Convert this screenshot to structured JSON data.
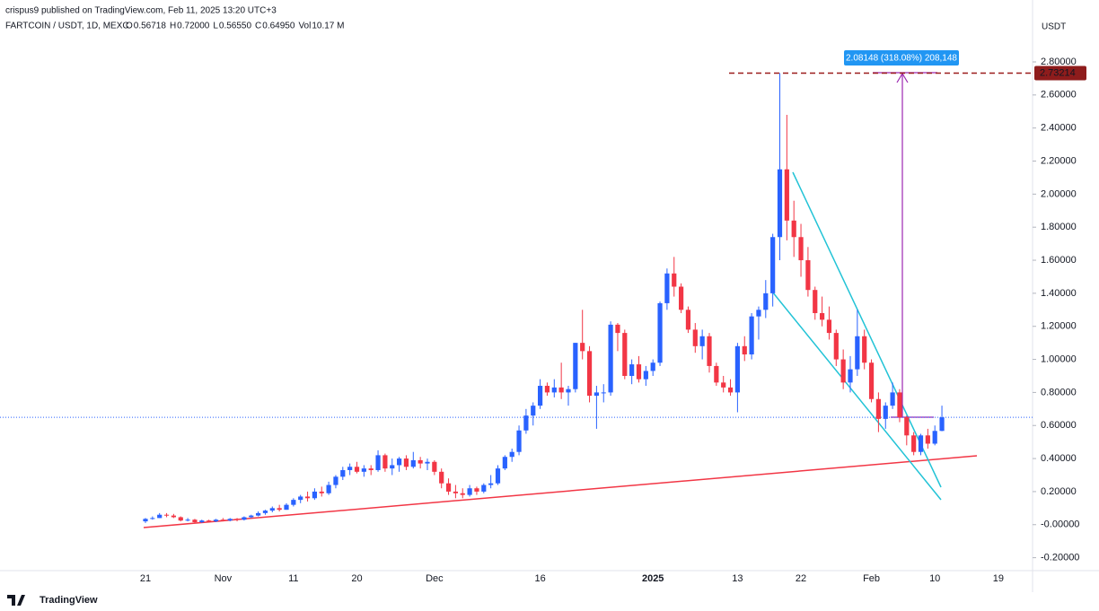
{
  "chart_data": {
    "type": "candlestick",
    "published": "crispus9 published on TradingView.com, Feb 11, 2025 13:20 UTC+3",
    "symbol": "FARTCOIN / USDT, 1D, MEXC",
    "legend": [
      {
        "key": "O",
        "value": "0.56718"
      },
      {
        "key": "H",
        "value": "0.72000"
      },
      {
        "key": "L",
        "value": "0.56550"
      },
      {
        "key": "C",
        "value": "0.64950"
      },
      {
        "key": "Vol",
        "value": "10.17 M"
      }
    ],
    "unit": "USDT",
    "brand": "TradingView",
    "measure_label": "2.08148 (318.08%) 208,148",
    "target_price": 2.73214,
    "last_price": 0.6495,
    "up_color": "#2962ff",
    "down_color": "#f23645",
    "categories": [
      "21",
      null,
      null,
      null,
      null,
      null,
      null,
      null,
      null,
      null,
      null,
      "Nov",
      null,
      null,
      null,
      null,
      null,
      null,
      null,
      null,
      null,
      "11",
      null,
      null,
      null,
      null,
      null,
      null,
      null,
      null,
      "20",
      null,
      null,
      null,
      null,
      null,
      null,
      null,
      null,
      null,
      null,
      "Dec",
      null,
      null,
      null,
      null,
      null,
      null,
      null,
      null,
      null,
      null,
      null,
      null,
      null,
      null,
      "16",
      null,
      null,
      null,
      null,
      null,
      null,
      null,
      null,
      null,
      null,
      null,
      null,
      null,
      null,
      null,
      "2025",
      null,
      null,
      null,
      null,
      null,
      null,
      null,
      null,
      null,
      null,
      null,
      "13",
      null,
      null,
      null,
      null,
      null,
      null,
      null,
      null,
      "22",
      null,
      null,
      null,
      null,
      null,
      null,
      null,
      null,
      null,
      "Feb",
      null,
      null,
      null,
      null,
      null,
      null,
      null,
      null,
      "10",
      null,
      null,
      null,
      null,
      null,
      null,
      null,
      null,
      "19"
    ],
    "ohlc": [
      [
        0.02,
        0.04,
        0.01,
        0.035
      ],
      [
        0.035,
        0.05,
        0.03,
        0.04
      ],
      [
        0.04,
        0.07,
        0.04,
        0.06
      ],
      [
        0.06,
        0.07,
        0.045,
        0.055
      ],
      [
        0.055,
        0.065,
        0.04,
        0.045
      ],
      [
        0.045,
        0.05,
        0.02,
        0.025
      ],
      [
        0.025,
        0.04,
        0.02,
        0.03
      ],
      [
        0.03,
        0.035,
        0.01,
        0.015
      ],
      [
        0.015,
        0.03,
        0.01,
        0.025
      ],
      [
        0.025,
        0.03,
        0.015,
        0.02
      ],
      [
        0.02,
        0.035,
        0.015,
        0.03
      ],
      [
        0.03,
        0.04,
        0.02,
        0.025
      ],
      [
        0.025,
        0.04,
        0.02,
        0.035
      ],
      [
        0.035,
        0.04,
        0.02,
        0.03
      ],
      [
        0.03,
        0.05,
        0.025,
        0.045
      ],
      [
        0.045,
        0.06,
        0.04,
        0.055
      ],
      [
        0.055,
        0.08,
        0.05,
        0.07
      ],
      [
        0.07,
        0.09,
        0.06,
        0.085
      ],
      [
        0.085,
        0.11,
        0.075,
        0.1
      ],
      [
        0.1,
        0.12,
        0.08,
        0.09
      ],
      [
        0.09,
        0.13,
        0.09,
        0.12
      ],
      [
        0.12,
        0.16,
        0.11,
        0.15
      ],
      [
        0.15,
        0.18,
        0.13,
        0.17
      ],
      [
        0.17,
        0.2,
        0.14,
        0.16
      ],
      [
        0.16,
        0.22,
        0.15,
        0.2
      ],
      [
        0.2,
        0.23,
        0.17,
        0.19
      ],
      [
        0.19,
        0.26,
        0.18,
        0.24
      ],
      [
        0.24,
        0.3,
        0.22,
        0.29
      ],
      [
        0.29,
        0.35,
        0.27,
        0.33
      ],
      [
        0.33,
        0.37,
        0.3,
        0.35
      ],
      [
        0.35,
        0.38,
        0.31,
        0.32
      ],
      [
        0.32,
        0.36,
        0.29,
        0.34
      ],
      [
        0.34,
        0.36,
        0.3,
        0.33
      ],
      [
        0.33,
        0.45,
        0.32,
        0.42
      ],
      [
        0.42,
        0.43,
        0.32,
        0.34
      ],
      [
        0.34,
        0.4,
        0.3,
        0.36
      ],
      [
        0.36,
        0.41,
        0.32,
        0.4
      ],
      [
        0.4,
        0.42,
        0.33,
        0.35
      ],
      [
        0.35,
        0.44,
        0.34,
        0.39
      ],
      [
        0.39,
        0.41,
        0.34,
        0.37
      ],
      [
        0.37,
        0.4,
        0.33,
        0.38
      ],
      [
        0.38,
        0.39,
        0.3,
        0.32
      ],
      [
        0.32,
        0.34,
        0.22,
        0.25
      ],
      [
        0.25,
        0.28,
        0.18,
        0.2
      ],
      [
        0.2,
        0.24,
        0.16,
        0.19
      ],
      [
        0.19,
        0.22,
        0.16,
        0.18
      ],
      [
        0.18,
        0.24,
        0.17,
        0.22
      ],
      [
        0.22,
        0.23,
        0.18,
        0.2
      ],
      [
        0.2,
        0.25,
        0.19,
        0.24
      ],
      [
        0.24,
        0.3,
        0.22,
        0.25
      ],
      [
        0.25,
        0.36,
        0.24,
        0.34
      ],
      [
        0.34,
        0.42,
        0.33,
        0.41
      ],
      [
        0.41,
        0.46,
        0.38,
        0.44
      ],
      [
        0.44,
        0.6,
        0.42,
        0.57
      ],
      [
        0.57,
        0.7,
        0.55,
        0.66
      ],
      [
        0.66,
        0.74,
        0.6,
        0.72
      ],
      [
        0.72,
        0.88,
        0.7,
        0.84
      ],
      [
        0.84,
        0.86,
        0.78,
        0.8
      ],
      [
        0.8,
        0.88,
        0.77,
        0.83
      ],
      [
        0.83,
        0.98,
        0.76,
        0.8
      ],
      [
        0.8,
        0.84,
        0.72,
        0.82
      ],
      [
        0.82,
        1.1,
        0.8,
        1.1
      ],
      [
        1.1,
        1.3,
        1.0,
        1.05
      ],
      [
        1.05,
        1.08,
        0.74,
        0.78
      ],
      [
        0.78,
        0.84,
        0.58,
        0.8
      ],
      [
        0.8,
        0.85,
        0.74,
        0.8
      ],
      [
        0.8,
        1.23,
        0.78,
        1.21
      ],
      [
        1.21,
        1.22,
        1.05,
        1.16
      ],
      [
        1.16,
        1.18,
        0.88,
        0.9
      ],
      [
        0.9,
        1.0,
        0.85,
        0.97
      ],
      [
        0.97,
        1.02,
        0.86,
        0.88
      ],
      [
        0.88,
        0.96,
        0.84,
        0.93
      ],
      [
        0.93,
        1.0,
        0.9,
        0.98
      ],
      [
        0.98,
        1.35,
        0.96,
        1.34
      ],
      [
        1.34,
        1.55,
        1.3,
        1.52
      ],
      [
        1.52,
        1.62,
        1.38,
        1.44
      ],
      [
        1.44,
        1.46,
        1.28,
        1.3
      ],
      [
        1.3,
        1.32,
        1.16,
        1.18
      ],
      [
        1.18,
        1.22,
        1.04,
        1.08
      ],
      [
        1.08,
        1.18,
        1.0,
        1.14
      ],
      [
        1.14,
        1.16,
        0.92,
        0.96
      ],
      [
        0.96,
        0.98,
        0.84,
        0.86
      ],
      [
        0.86,
        0.9,
        0.8,
        0.83
      ],
      [
        0.83,
        0.88,
        0.78,
        0.8
      ],
      [
        0.8,
        1.1,
        0.68,
        1.08
      ],
      [
        1.08,
        1.14,
        0.99,
        1.03
      ],
      [
        1.03,
        1.28,
        1.0,
        1.26
      ],
      [
        1.26,
        1.32,
        1.12,
        1.3
      ],
      [
        1.3,
        1.48,
        1.25,
        1.4
      ],
      [
        1.4,
        1.76,
        1.32,
        1.74
      ],
      [
        1.74,
        2.73214,
        1.6,
        2.15
      ],
      [
        2.15,
        2.48,
        1.72,
        1.84
      ],
      [
        1.84,
        1.96,
        1.62,
        1.74
      ],
      [
        1.74,
        1.82,
        1.5,
        1.6
      ],
      [
        1.6,
        1.68,
        1.38,
        1.42
      ],
      [
        1.42,
        1.44,
        1.24,
        1.28
      ],
      [
        1.28,
        1.38,
        1.2,
        1.24
      ],
      [
        1.24,
        1.32,
        1.12,
        1.16
      ],
      [
        1.16,
        1.18,
        0.96,
        1.0
      ],
      [
        1.0,
        1.06,
        0.82,
        0.86
      ],
      [
        0.86,
        1.02,
        0.8,
        0.94
      ],
      [
        0.94,
        1.3,
        0.9,
        1.14
      ],
      [
        1.14,
        1.18,
        0.94,
        0.98
      ],
      [
        0.98,
        1.0,
        0.74,
        0.76
      ],
      [
        0.76,
        0.8,
        0.56,
        0.64
      ],
      [
        0.64,
        0.74,
        0.58,
        0.72
      ],
      [
        0.72,
        0.86,
        0.7,
        0.8
      ],
      [
        0.8,
        0.82,
        0.62,
        0.65
      ],
      [
        0.65,
        0.66,
        0.48,
        0.54
      ],
      [
        0.54,
        0.56,
        0.42,
        0.44
      ],
      [
        0.44,
        0.55,
        0.42,
        0.54
      ],
      [
        0.54,
        0.58,
        0.46,
        0.49
      ],
      [
        0.49,
        0.6,
        0.48,
        0.56718
      ],
      [
        0.56718,
        0.72,
        0.5655,
        0.6495
      ],
      null,
      null,
      null,
      null,
      null,
      null,
      null,
      null
    ],
    "ylim": [
      -0.2,
      2.8
    ],
    "yticks": [
      {
        "value": -0.2,
        "label": "-0.20000"
      },
      {
        "value": 0,
        "label": "-0.00000"
      },
      {
        "value": 0.2,
        "label": "0.20000"
      },
      {
        "value": 0.4,
        "label": "0.40000"
      },
      {
        "value": 0.6,
        "label": "0.60000"
      },
      {
        "value": 0.8,
        "label": "0.80000"
      },
      {
        "value": 1,
        "label": "1.00000"
      },
      {
        "value": 1.2,
        "label": "1.20000"
      },
      {
        "value": 1.4,
        "label": "1.40000"
      },
      {
        "value": 1.6,
        "label": "1.60000"
      },
      {
        "value": 1.8,
        "label": "1.80000"
      },
      {
        "value": 2,
        "label": "2.00000"
      },
      {
        "value": 2.2,
        "label": "2.20000"
      },
      {
        "value": 2.4,
        "label": "2.40000"
      },
      {
        "value": 2.6,
        "label": "2.60000"
      },
      {
        "value": 2.8,
        "label": "2.80000"
      }
    ]
  }
}
